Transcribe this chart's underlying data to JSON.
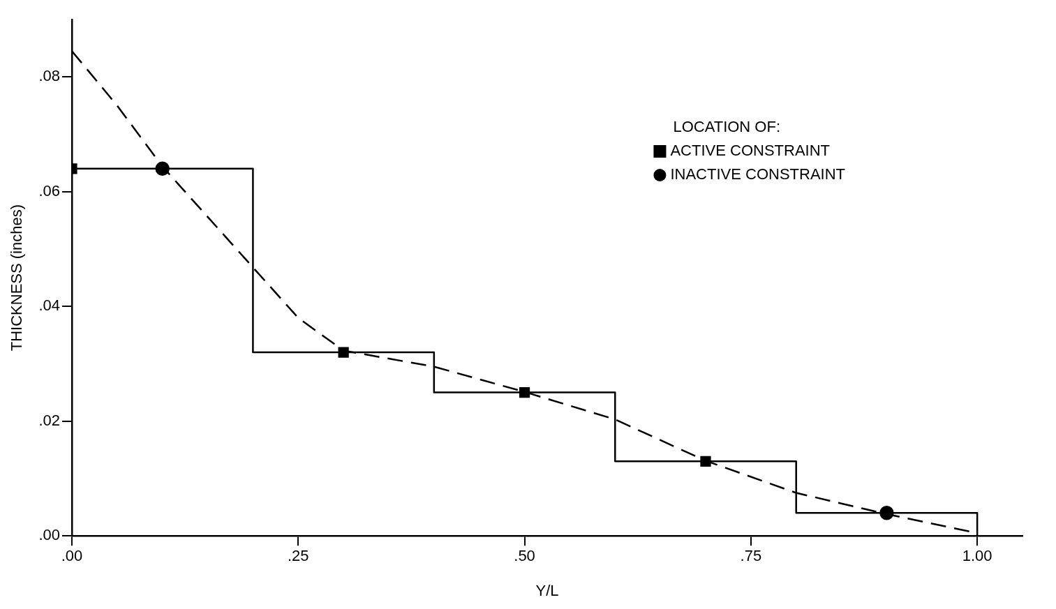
{
  "chart_data": {
    "type": "line",
    "xlabel": "Y/L",
    "ylabel": "THICKNESS (inches)",
    "legend_title": "LOCATION OF:",
    "legend": "top right",
    "grid": false,
    "xlim": [
      0,
      1.05
    ],
    "xticks": [
      {
        "value": 0,
        "label": ".00"
      },
      {
        "value": 0.25,
        "label": ".25"
      },
      {
        "value": 0.5,
        "label": ".50"
      },
      {
        "value": 0.75,
        "label": ".75"
      },
      {
        "value": 1,
        "label": "1.00"
      }
    ],
    "ylim": [
      0,
      0.09
    ],
    "yticks": [
      {
        "value": 0,
        "label": ".00"
      },
      {
        "value": 0.02,
        "label": ".02"
      },
      {
        "value": 0.04,
        "label": ".04"
      },
      {
        "value": 0.06,
        "label": ".06"
      },
      {
        "value": 0.08,
        "label": ".08"
      }
    ],
    "series": [
      {
        "type": "step",
        "color": "#000000",
        "marker": "none",
        "line_style": "solid",
        "x": [
          0,
          0.2,
          0.4,
          0.6,
          0.8,
          1.0
        ],
        "values": [
          0.064,
          0.032,
          0.025,
          0.013,
          0.004,
          0
        ]
      },
      {
        "type": "line",
        "color": "#000000",
        "marker": "none",
        "line_style": "dashed",
        "x": [
          0,
          0.05,
          0.1,
          0.2,
          0.25,
          0.3,
          0.4,
          0.5,
          0.6,
          0.7,
          0.8,
          0.9,
          1.0
        ],
        "values": [
          0.0845,
          0.075,
          0.0644,
          0.0468,
          0.038,
          0.0323,
          0.0295,
          0.0251,
          0.0203,
          0.0131,
          0.0075,
          0.0038,
          0.0005
        ]
      },
      {
        "type": "scatter",
        "name": "ACTIVE CONSTRAINT",
        "color": "#000000",
        "marker": "square",
        "x": [
          0,
          0.3,
          0.5,
          0.7
        ],
        "values": [
          0.064,
          0.032,
          0.025,
          0.013
        ]
      },
      {
        "type": "scatter",
        "name": "INACTIVE CONSTRAINT",
        "color": "#000000",
        "marker": "circle",
        "x": [
          0.1,
          0.9
        ],
        "values": [
          0.064,
          0.004
        ]
      }
    ]
  }
}
